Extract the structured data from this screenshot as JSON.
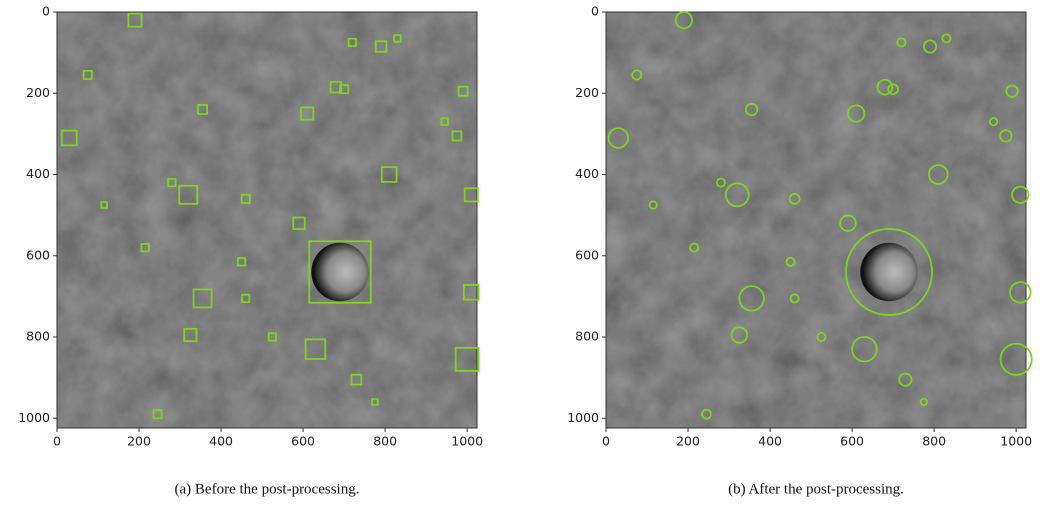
{
  "chart_data": [
    {
      "type": "scatter",
      "marker": "square",
      "color": "#7ed321",
      "caption": "(a) Before the post-processing.",
      "xlim": [
        0,
        1024
      ],
      "ylim": [
        1024,
        0
      ],
      "xticks": [
        0,
        200,
        400,
        600,
        800,
        1000
      ],
      "yticks": [
        0,
        200,
        400,
        600,
        800,
        1000
      ],
      "x": [
        190,
        75,
        30,
        320,
        355,
        280,
        115,
        215,
        355,
        325,
        245,
        460,
        450,
        460,
        525,
        590,
        610,
        630,
        690,
        680,
        700,
        720,
        790,
        830,
        810,
        945,
        975,
        990,
        1010,
        1010,
        1000,
        730,
        775
      ],
      "y": [
        20,
        155,
        310,
        450,
        240,
        420,
        475,
        580,
        705,
        795,
        990,
        460,
        615,
        705,
        800,
        520,
        250,
        830,
        640,
        185,
        190,
        75,
        85,
        65,
        400,
        270,
        305,
        195,
        450,
        690,
        855,
        905,
        960
      ],
      "sizes": [
        16,
        10,
        18,
        22,
        11,
        9,
        7,
        9,
        22,
        15,
        10,
        10,
        9,
        9,
        9,
        14,
        15,
        24,
        75,
        13,
        10,
        9,
        13,
        8,
        18,
        8,
        11,
        11,
        16,
        18,
        28,
        12,
        7
      ]
    },
    {
      "type": "scatter",
      "marker": "circle",
      "color": "#7ed321",
      "caption": "(b) After the post-processing.",
      "xlim": [
        0,
        1024
      ],
      "ylim": [
        1024,
        0
      ],
      "xticks": [
        0,
        200,
        400,
        600,
        800,
        1000
      ],
      "yticks": [
        0,
        200,
        400,
        600,
        800,
        1000
      ],
      "x": [
        190,
        75,
        30,
        320,
        355,
        280,
        115,
        215,
        355,
        325,
        245,
        460,
        450,
        460,
        525,
        590,
        610,
        630,
        690,
        680,
        700,
        720,
        790,
        830,
        810,
        945,
        975,
        990,
        1010,
        1010,
        1000,
        730,
        775
      ],
      "y": [
        20,
        155,
        310,
        450,
        240,
        420,
        475,
        580,
        705,
        795,
        990,
        460,
        615,
        705,
        800,
        520,
        250,
        830,
        640,
        185,
        190,
        75,
        85,
        65,
        400,
        270,
        305,
        195,
        450,
        690,
        855,
        905,
        960
      ],
      "sizes": [
        20,
        11,
        24,
        28,
        14,
        10,
        9,
        10,
        30,
        19,
        11,
        12,
        10,
        10,
        10,
        19,
        20,
        30,
        105,
        18,
        12,
        10,
        15,
        10,
        23,
        9,
        14,
        14,
        20,
        25,
        38,
        15,
        8
      ]
    }
  ]
}
